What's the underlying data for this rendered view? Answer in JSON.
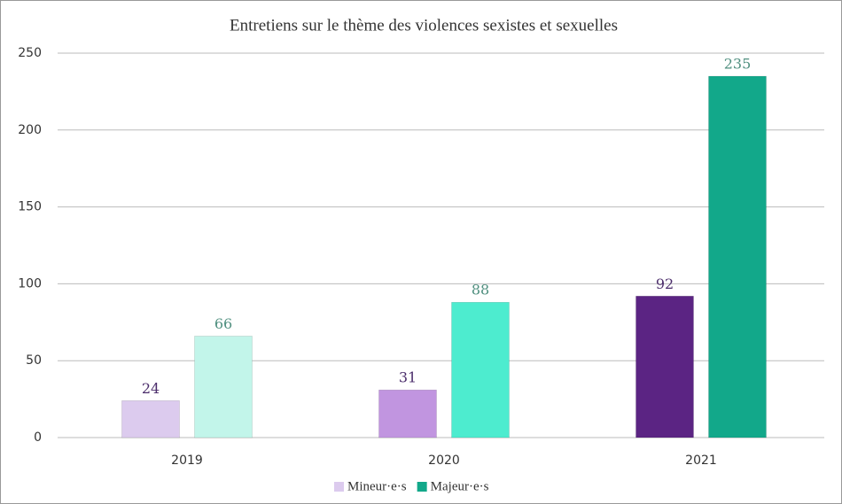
{
  "chart_data": {
    "type": "bar",
    "title": "Entretiens sur le thème des violences sexistes et sexuelles",
    "categories": [
      "2019",
      "2020",
      "2021"
    ],
    "series": [
      {
        "name": "Mineur·e·s",
        "color": "#dccbee",
        "colors": [
          "#dccbee",
          "#c195e0",
          "#5b2483"
        ],
        "label_color": "#4b2d6b",
        "values": [
          24,
          31,
          92
        ]
      },
      {
        "name": "Majeur·e·s",
        "color": "#12a88a",
        "colors": [
          "#c2f5ea",
          "#4deccf",
          "#12a88a"
        ],
        "label_color": "#4f8f7f",
        "values": [
          66,
          88,
          235
        ]
      }
    ],
    "ylim": [
      0,
      250
    ],
    "yticks": [
      0,
      50,
      100,
      150,
      200,
      250
    ],
    "grid": true,
    "legend": "bottom"
  }
}
